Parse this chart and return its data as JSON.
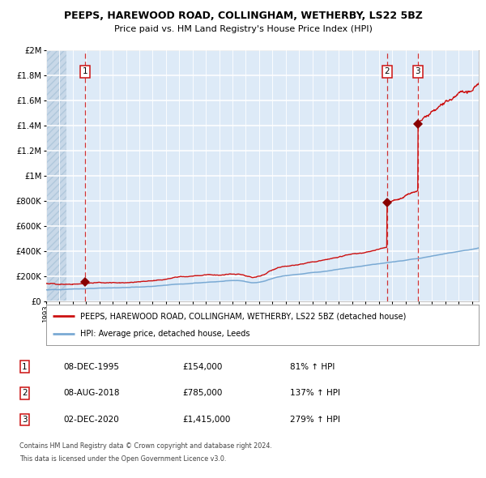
{
  "title": "PEEPS, HAREWOOD ROAD, COLLINGHAM, WETHERBY, LS22 5BZ",
  "subtitle": "Price paid vs. HM Land Registry's House Price Index (HPI)",
  "legend_line1": "PEEPS, HAREWOOD ROAD, COLLINGHAM, WETHERBY, LS22 5BZ (detached house)",
  "legend_line2": "HPI: Average price, detached house, Leeds",
  "footer1": "Contains HM Land Registry data © Crown copyright and database right 2024.",
  "footer2": "This data is licensed under the Open Government Licence v3.0.",
  "sale1_date": "08-DEC-1995",
  "sale1_price": "£154,000",
  "sale1_hpi": "81% ↑ HPI",
  "sale1_year": 1995.93,
  "sale1_value": 154000,
  "sale2_date": "08-AUG-2018",
  "sale2_price": "£785,000",
  "sale2_hpi": "137% ↑ HPI",
  "sale2_year": 2018.6,
  "sale2_value": 785000,
  "sale3_date": "02-DEC-2020",
  "sale3_price": "£1,415,000",
  "sale3_hpi": "279% ↑ HPI",
  "sale3_year": 2020.92,
  "sale3_value": 1415000,
  "hpi_color": "#7aaad4",
  "price_color": "#cc1111",
  "sale_marker_color": "#880000",
  "vline_color": "#cc1111",
  "bg_color": "#ddeaf7",
  "grid_color": "#ffffff",
  "ylim_max": 2000000,
  "xlim_min": 1993.0,
  "xlim_max": 2025.5,
  "yticks": [
    0,
    200000,
    400000,
    600000,
    800000,
    1000000,
    1200000,
    1400000,
    1600000,
    1800000,
    2000000
  ]
}
